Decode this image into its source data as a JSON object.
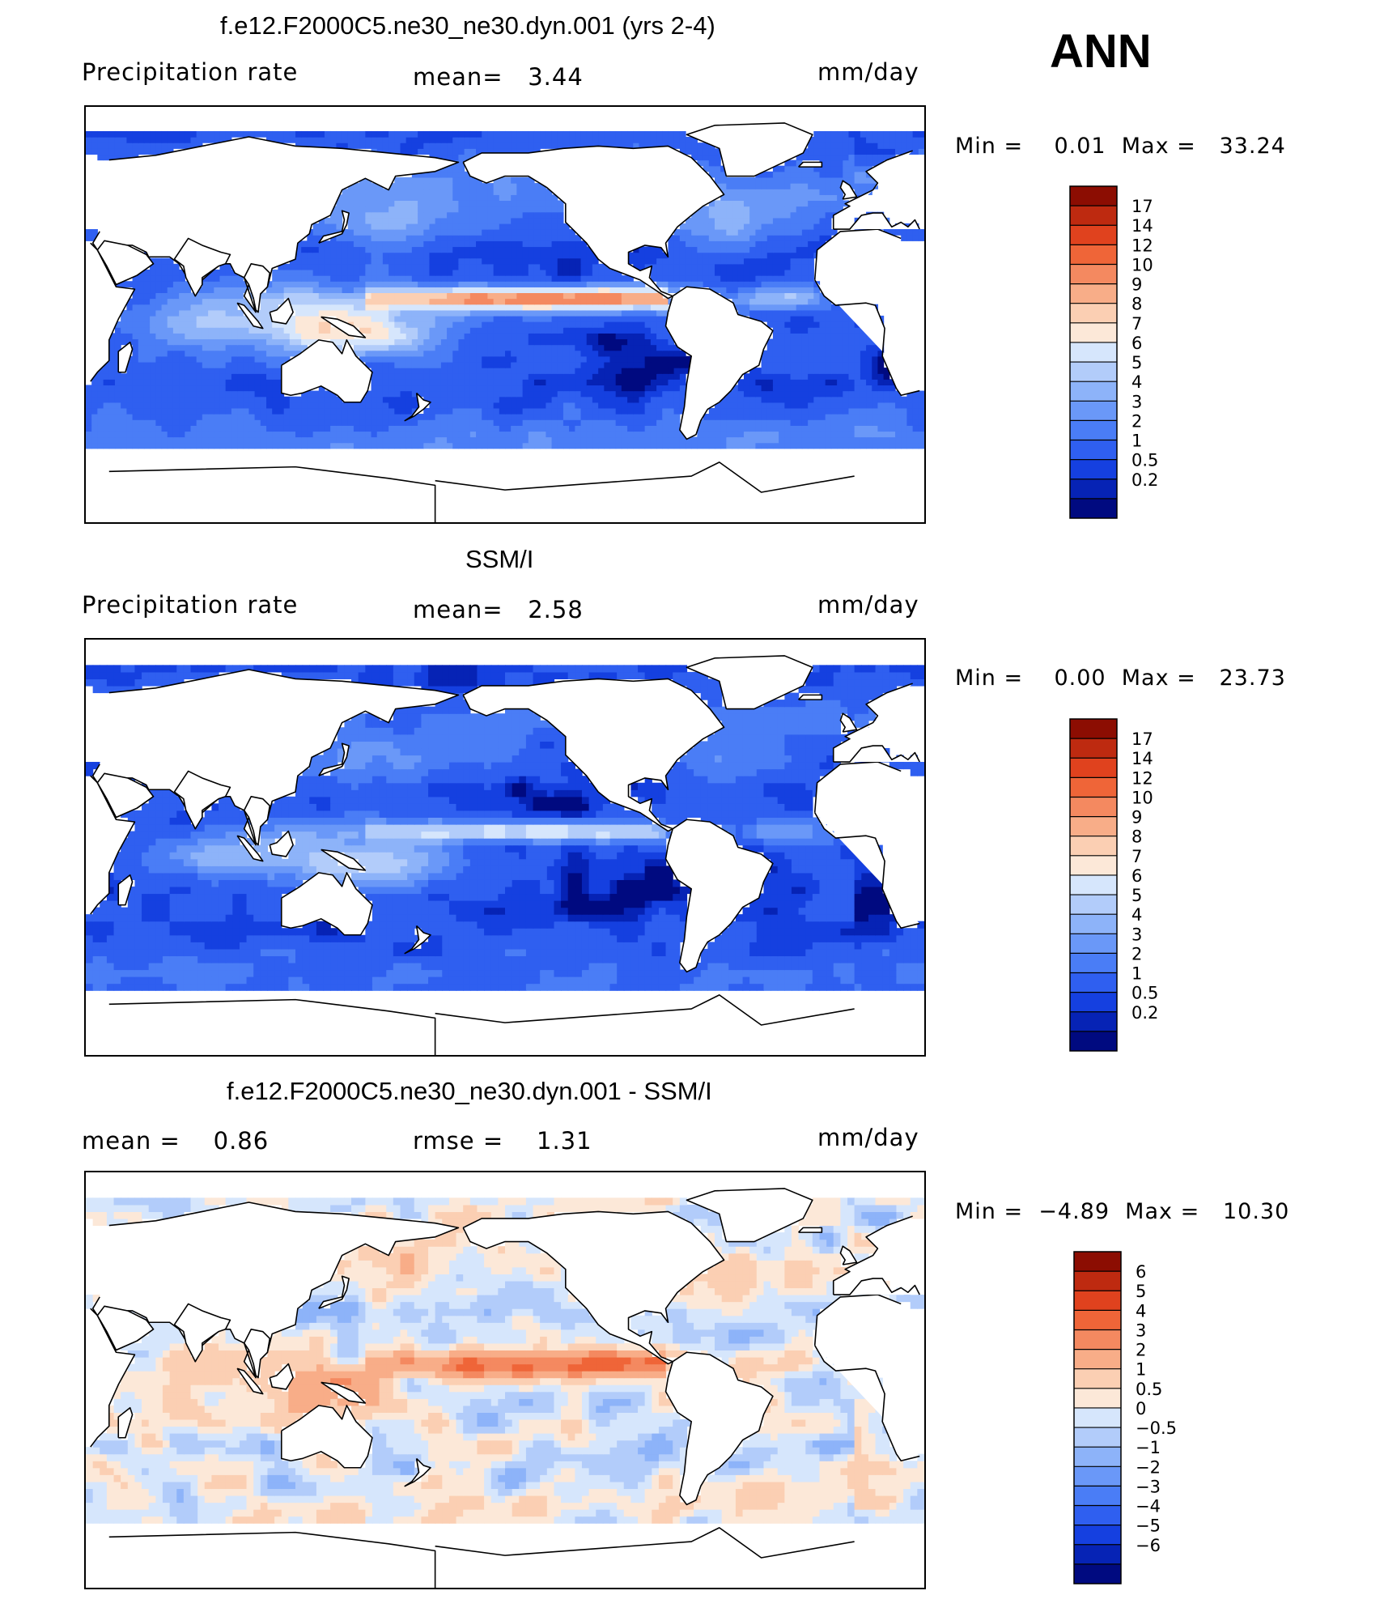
{
  "season": "ANN",
  "palette": {
    "abs": [
      "#000a80",
      "#0623b5",
      "#1540e0",
      "#2f5ff0",
      "#4a7df6",
      "#6a98f8",
      "#8db3f9",
      "#b2ccfa",
      "#d6e6fc",
      "#fce8d8",
      "#fbcfb3",
      "#f8ad88",
      "#f48960",
      "#ef6538",
      "#e0421e",
      "#be2a10",
      "#8c0d02"
    ],
    "diff": [
      "#000a80",
      "#0623b5",
      "#1540e0",
      "#2f5ff0",
      "#4a7df6",
      "#6a98f8",
      "#8db3f9",
      "#b2ccfa",
      "#d6e6fc",
      "#fce8d8",
      "#fbcfb3",
      "#f8ad88",
      "#f48960",
      "#ef6538",
      "#e0421e",
      "#be2a10",
      "#8c0d02"
    ]
  },
  "panels": [
    {
      "title": "f.e12.F2000C5.ne30_ne30.dyn.001 (yrs 2-4)",
      "left_label": "Precipitation rate",
      "mid_label": "mean=   3.44",
      "units": "mm/day",
      "minmax": "Min =    0.01  Max =   33.24",
      "levels": [
        "17",
        "14",
        "12",
        "10",
        "9",
        "8",
        "7",
        "6",
        "5",
        "4",
        "3",
        "2",
        "1",
        "0.5",
        "0.2"
      ],
      "field": "model"
    },
    {
      "title": "SSM/I",
      "left_label": "Precipitation rate",
      "mid_label": "mean=   2.58",
      "units": "mm/day",
      "minmax": "Min =    0.00  Max =   23.73",
      "levels": [
        "17",
        "14",
        "12",
        "10",
        "9",
        "8",
        "7",
        "6",
        "5",
        "4",
        "3",
        "2",
        "1",
        "0.5",
        "0.2"
      ],
      "field": "obs"
    },
    {
      "title": "f.e12.F2000C5.ne30_ne30.dyn.001 - SSM/I",
      "left_label": "mean =    0.86",
      "mid_label": "rmse =    1.31",
      "units": "mm/day",
      "minmax": "Min =  −4.89  Max =   10.30",
      "levels": [
        "6",
        "5",
        "4",
        "3",
        "2",
        "1",
        "0.5",
        "0",
        "−0.5",
        "−1",
        "−2",
        "−3",
        "−4",
        "−5",
        "−6"
      ],
      "field": "diff"
    }
  ],
  "chart_data": {
    "type": "heatmap",
    "map_projection": "cylindrical-equidistant",
    "lon_range": [
      30,
      390
    ],
    "lat_range": [
      -90,
      90
    ],
    "charts": [
      {
        "title": "f.e12.F2000C5.ne30_ne30.dyn.001 (yrs 2-4)",
        "variable": "Precipitation rate",
        "units": "mm/day",
        "mean": 3.44,
        "min": 0.01,
        "max": 33.24,
        "contour_levels": [
          0.2,
          0.5,
          1,
          2,
          3,
          4,
          5,
          6,
          7,
          8,
          9,
          10,
          12,
          14,
          17
        ]
      },
      {
        "title": "SSM/I",
        "variable": "Precipitation rate",
        "units": "mm/day",
        "mean": 2.58,
        "min": 0.0,
        "max": 23.73,
        "contour_levels": [
          0.2,
          0.5,
          1,
          2,
          3,
          4,
          5,
          6,
          7,
          8,
          9,
          10,
          12,
          14,
          17
        ]
      },
      {
        "title": "f.e12.F2000C5.ne30_ne30.dyn.001 - SSM/I",
        "units": "mm/day",
        "mean": 0.86,
        "rmse": 1.31,
        "min": -4.89,
        "max": 10.3,
        "contour_levels": [
          -6,
          -5,
          -4,
          -3,
          -2,
          -1,
          -0.5,
          0,
          0.5,
          1,
          2,
          3,
          4,
          5,
          6
        ]
      }
    ]
  }
}
